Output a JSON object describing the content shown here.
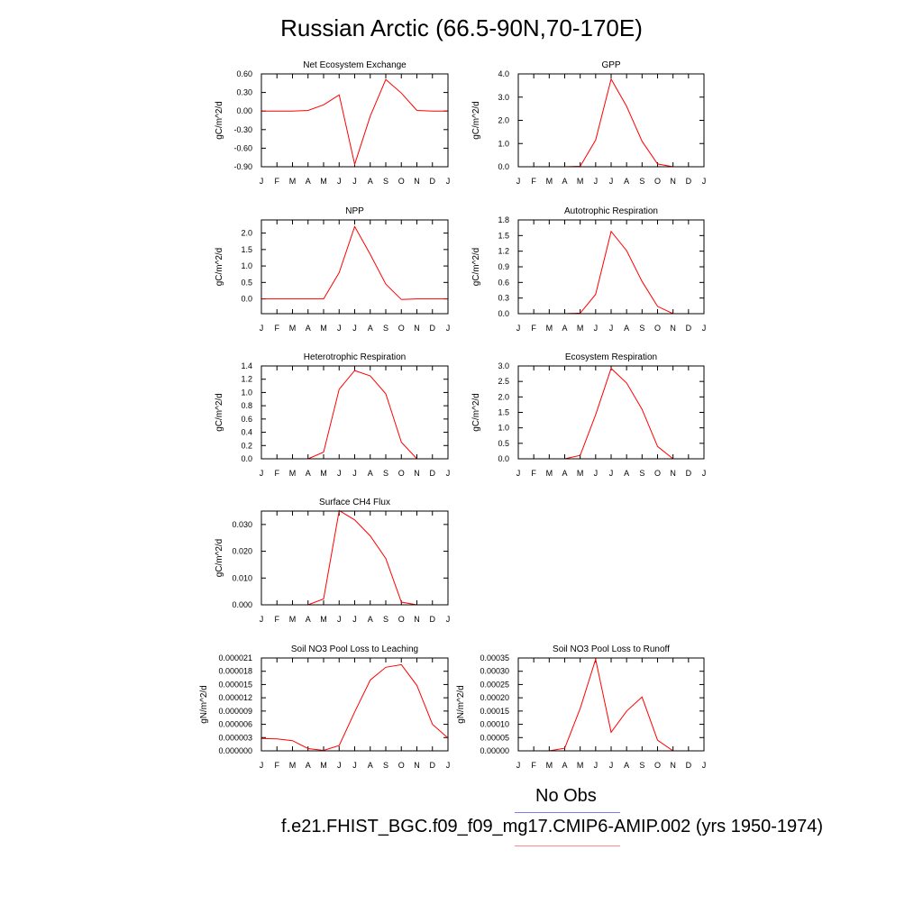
{
  "title": "Russian Arctic (66.5-90N,70-170E)",
  "legend": [
    {
      "label": "No Obs",
      "color": "#7b7bf2"
    },
    {
      "label": "f.e21.FHIST_BGC.f09_f09_mg17.CMIP6-AMIP.002 (yrs 1950-1974)",
      "color": "#ff8a8a"
    }
  ],
  "colors": {
    "series": "#ff0000",
    "axis": "#000000"
  },
  "chart_data": [
    {
      "type": "line",
      "title": "Net Ecosystem Exchange",
      "ylabel": "gC/m^2/d",
      "categories": [
        "J",
        "F",
        "M",
        "A",
        "M",
        "J",
        "J",
        "A",
        "S",
        "O",
        "N",
        "D",
        "J"
      ],
      "ylim": [
        -0.9,
        0.6
      ],
      "yticks": [
        "0.60",
        "0.30",
        "0.00",
        "-0.30",
        "-0.60",
        "-0.90"
      ],
      "series": [
        {
          "values": [
            0.0,
            0.0,
            0.0,
            0.01,
            0.1,
            0.26,
            -0.86,
            -0.08,
            0.51,
            0.29,
            0.01,
            0.0,
            0.0
          ]
        }
      ]
    },
    {
      "type": "line",
      "title": "GPP",
      "ylabel": "gC/m^2/d",
      "categories": [
        "J",
        "F",
        "M",
        "A",
        "M",
        "J",
        "J",
        "A",
        "S",
        "O",
        "N",
        "D",
        "J"
      ],
      "ylim": [
        0,
        4
      ],
      "yticks": [
        "4.0",
        "3.0",
        "2.0",
        "1.0",
        "0.0"
      ],
      "series": [
        {
          "values": [
            0.0,
            0.0,
            0.0,
            0.0,
            0.02,
            1.15,
            3.78,
            2.6,
            1.1,
            0.12,
            0.0,
            0.0,
            0.0
          ]
        }
      ]
    },
    {
      "type": "line",
      "title": "NPP",
      "ylabel": "gC/m^2/d",
      "categories": [
        "J",
        "F",
        "M",
        "A",
        "M",
        "J",
        "J",
        "A",
        "S",
        "O",
        "N",
        "D",
        "J"
      ],
      "ylim": [
        -0.45,
        2.4
      ],
      "yticks": [
        "2.0",
        "1.5",
        "1.0",
        "0.5",
        "0.0"
      ],
      "series": [
        {
          "values": [
            0.0,
            0.0,
            0.0,
            0.0,
            0.0,
            0.8,
            2.2,
            1.35,
            0.45,
            -0.02,
            0.0,
            0.0,
            0.0
          ]
        }
      ]
    },
    {
      "type": "line",
      "title": "Autotrophic Respiration",
      "ylabel": "gC/m^2/d",
      "categories": [
        "J",
        "F",
        "M",
        "A",
        "M",
        "J",
        "J",
        "A",
        "S",
        "O",
        "N",
        "D",
        "J"
      ],
      "ylim": [
        0,
        1.8
      ],
      "yticks": [
        "1.8",
        "1.5",
        "1.2",
        "0.9",
        "0.6",
        "0.3",
        "0.0"
      ],
      "series": [
        {
          "values": [
            0.0,
            0.0,
            0.0,
            0.0,
            0.01,
            0.37,
            1.58,
            1.21,
            0.62,
            0.14,
            0.0,
            0.0,
            0.0
          ]
        }
      ]
    },
    {
      "type": "line",
      "title": "Heterotrophic Respiration",
      "ylabel": "gC/m^2/d",
      "categories": [
        "J",
        "F",
        "M",
        "A",
        "M",
        "J",
        "J",
        "A",
        "S",
        "O",
        "N",
        "D",
        "J"
      ],
      "ylim": [
        0,
        1.4
      ],
      "yticks": [
        "1.4",
        "1.2",
        "1.0",
        "0.8",
        "0.6",
        "0.4",
        "0.2",
        "0.0"
      ],
      "series": [
        {
          "values": [
            0.0,
            0.0,
            0.0,
            0.0,
            0.1,
            1.05,
            1.33,
            1.25,
            0.98,
            0.25,
            0.0,
            0.0,
            0.0
          ]
        }
      ]
    },
    {
      "type": "line",
      "title": "Ecosystem Respiration",
      "ylabel": "gC/m^2/d",
      "categories": [
        "J",
        "F",
        "M",
        "A",
        "M",
        "J",
        "J",
        "A",
        "S",
        "O",
        "N",
        "D",
        "J"
      ],
      "ylim": [
        0,
        3
      ],
      "yticks": [
        "3.0",
        "2.5",
        "2.0",
        "1.5",
        "1.0",
        "0.5",
        "0.0"
      ],
      "series": [
        {
          "values": [
            0.0,
            0.0,
            0.0,
            0.0,
            0.11,
            1.42,
            2.92,
            2.45,
            1.6,
            0.4,
            0.0,
            0.0,
            0.0
          ]
        }
      ]
    },
    {
      "type": "line",
      "title": "Surface CH4 Flux",
      "ylabel": "gC/m^2/d",
      "categories": [
        "J",
        "F",
        "M",
        "A",
        "M",
        "J",
        "J",
        "A",
        "S",
        "O",
        "N",
        "D",
        "J"
      ],
      "ylim": [
        0,
        0.035
      ],
      "yticks": [
        "0.030",
        "0.020",
        "0.010",
        "0.000"
      ],
      "series": [
        {
          "values": [
            0.0,
            0.0,
            0.0,
            0.0,
            0.0022,
            0.0352,
            0.0317,
            0.0257,
            0.0173,
            0.001,
            0.0,
            0.0,
            0.0
          ]
        }
      ]
    },
    {
      "type": "line",
      "title": "Soil NO3 Pool Loss to Leaching",
      "ylabel": "gN/m^2/d",
      "categories": [
        "J",
        "F",
        "M",
        "A",
        "M",
        "J",
        "J",
        "A",
        "S",
        "O",
        "N",
        "D",
        "J"
      ],
      "ylim": [
        0,
        2.1e-05
      ],
      "yticks": [
        "0.000021",
        "0.000018",
        "0.000015",
        "0.000012",
        "0.000009",
        "0.000006",
        "0.000003",
        "0.000000"
      ],
      "series": [
        {
          "values": [
            2.8e-06,
            2.7e-06,
            2.3e-06,
            5e-07,
            1e-07,
            1.2e-06,
            8.8e-06,
            1.6e-05,
            1.89e-05,
            1.95e-05,
            1.48e-05,
            6e-06,
            2.9e-06
          ]
        }
      ]
    },
    {
      "type": "line",
      "title": "Soil NO3 Pool Loss to Runoff",
      "ylabel": "gN/m^2/d",
      "categories": [
        "J",
        "F",
        "M",
        "A",
        "M",
        "J",
        "J",
        "A",
        "S",
        "O",
        "N",
        "D",
        "J"
      ],
      "ylim": [
        0,
        0.00035
      ],
      "yticks": [
        "0.00035",
        "0.00030",
        "0.00025",
        "0.00020",
        "0.00015",
        "0.00010",
        "0.00005",
        "0.00000"
      ],
      "series": [
        {
          "values": [
            0.0,
            0.0,
            0.0,
            1e-05,
            0.00016,
            0.000345,
            7e-05,
            0.00015,
            0.000203,
            4e-05,
            0.0,
            0.0,
            0.0
          ]
        }
      ]
    }
  ]
}
